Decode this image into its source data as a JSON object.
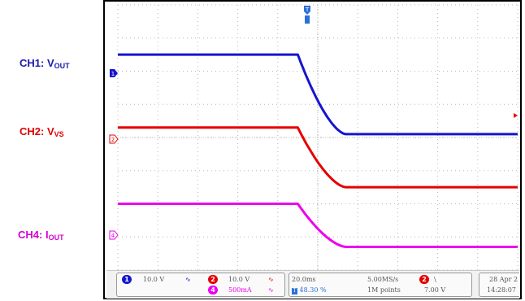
{
  "labels": {
    "ch1": {
      "prefix": "CH1: V",
      "sub": "OUT",
      "color": "#1a1aa8"
    },
    "ch2": {
      "prefix": "CH2: V",
      "sub": "VS",
      "color": "#e00000"
    },
    "ch4": {
      "prefix": "CH4: I",
      "sub": "OUT",
      "color": "#d400d4"
    }
  },
  "colors": {
    "ch1": "#1515d0",
    "ch2": "#e60000",
    "ch4": "#ee00ee",
    "grid": "#b8b8b8"
  },
  "markers": {
    "trigger": "T",
    "ch1": "1",
    "ch2": "2",
    "ch4": "4"
  },
  "status": {
    "ch1_num": "1",
    "ch1_scale": "10.0 V",
    "ch2_num": "2",
    "ch2_scale": "10.0 V",
    "ch4_num": "4",
    "ch4_scale": "500mA",
    "timebase": "20.0ms",
    "trigger_pos": "48.30 %",
    "sample_rate": "5.00MS/s",
    "record_length": "1M points",
    "trig_num": "2",
    "trig_slope": "\\",
    "trig_level": "7.00 V",
    "date": "28 Apr 2",
    "time": "14:28:07"
  },
  "chart_data": {
    "type": "line",
    "title": "",
    "series": [
      {
        "name": "CH1: VOUT",
        "x": [
          0,
          4.5,
          5.7,
          10
        ],
        "y": [
          2.5,
          2.5,
          0.1,
          0.1
        ]
      },
      {
        "name": "CH2: VVS",
        "x": [
          0,
          4.5,
          5.7,
          10
        ],
        "y": [
          0.3,
          0.3,
          -1.5,
          -1.5
        ]
      },
      {
        "name": "CH4: IOUT",
        "x": [
          0,
          4.5,
          5.7,
          10
        ],
        "y": [
          -2.0,
          -2.0,
          -3.3,
          -3.3
        ]
      }
    ],
    "xlim": [
      0,
      10
    ],
    "ylim": [
      -4,
      4
    ],
    "grid": true
  }
}
